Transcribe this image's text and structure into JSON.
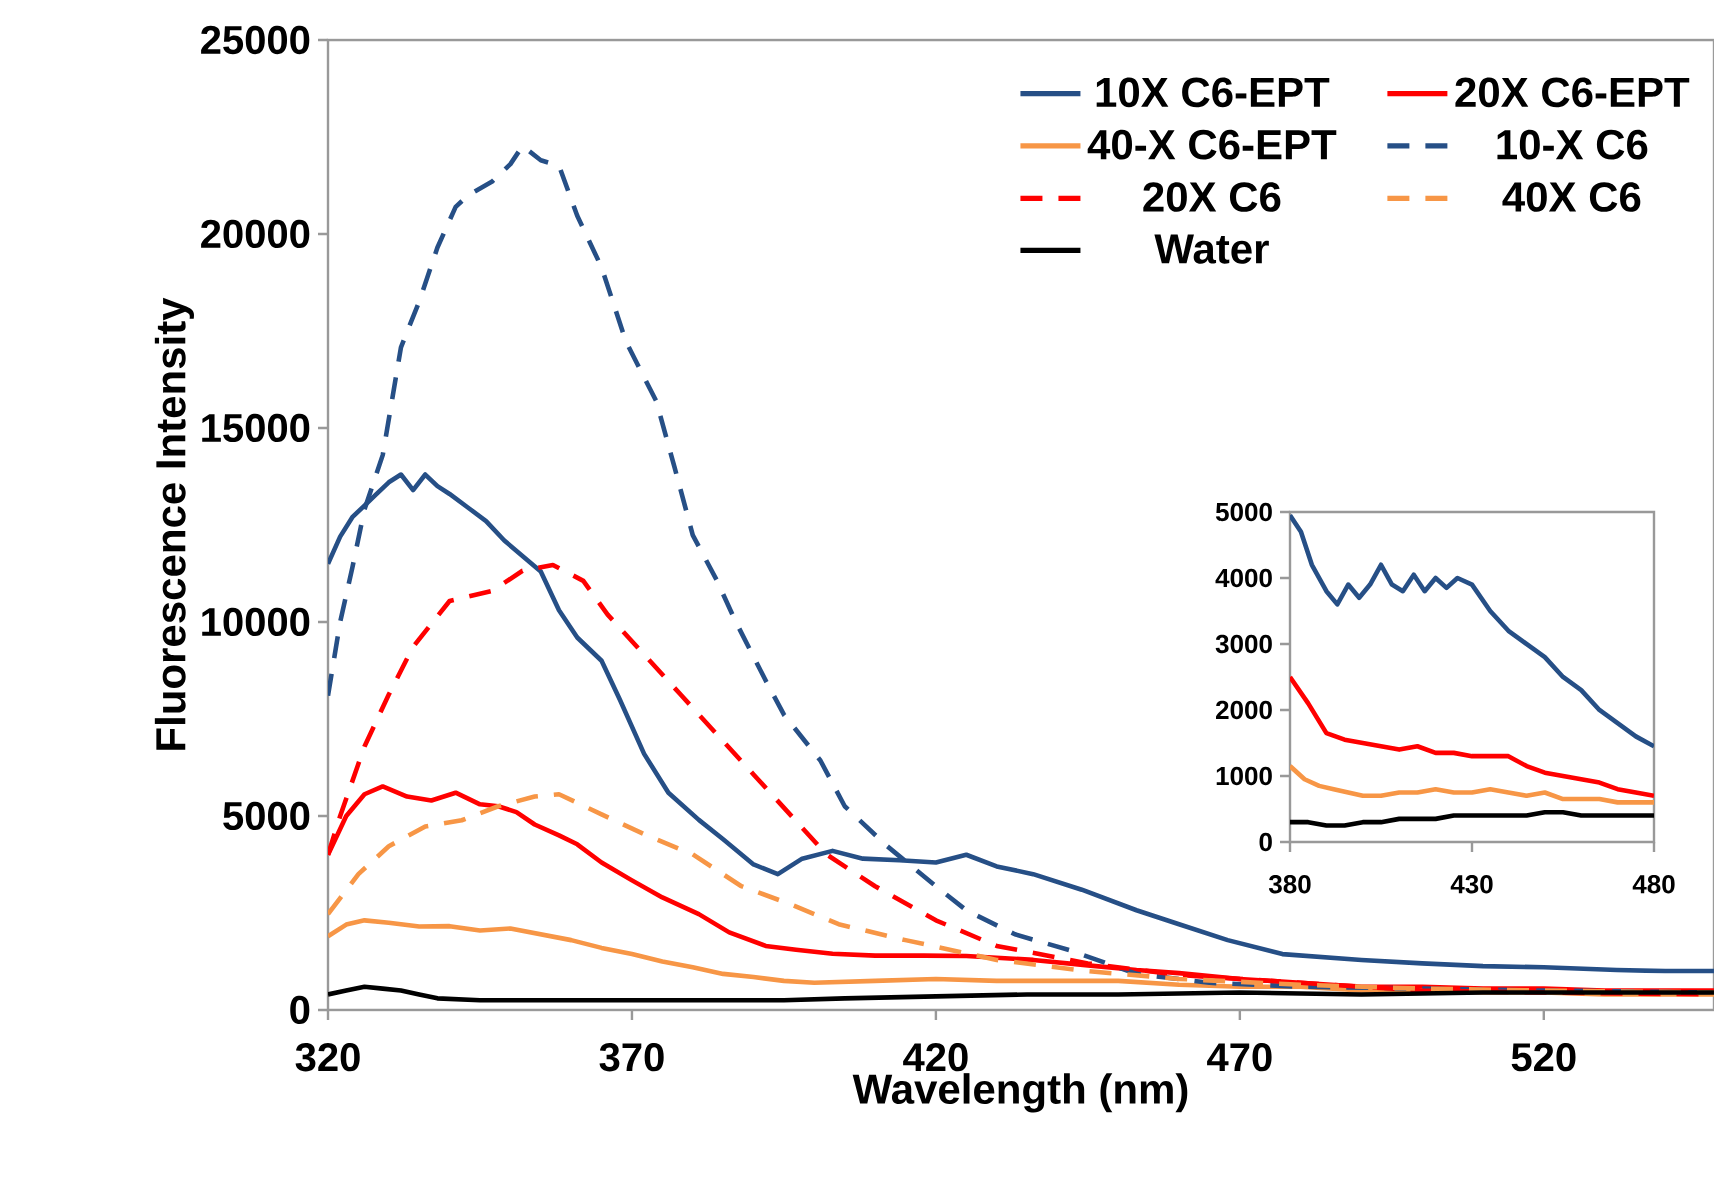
{
  "chart_data": [
    {
      "type": "line",
      "xlabel": "Wavelength (nm)",
      "ylabel": "Fluorescence Intensity",
      "xlim": [
        320,
        548
      ],
      "ylim": [
        0,
        25000
      ],
      "xticks": [
        320,
        370,
        420,
        470,
        520
      ],
      "yticks": [
        0,
        5000,
        10000,
        15000,
        20000,
        25000
      ],
      "grid": false,
      "legend": "top right",
      "marker": "none",
      "series": [
        {
          "name": "10X C6-EPT",
          "color": "#264f86",
          "line_style": "solid",
          "x": [
            320,
            322,
            324,
            326,
            328,
            330,
            332,
            334,
            336,
            338,
            340,
            343,
            346,
            349,
            352,
            355,
            358,
            361,
            365,
            368,
            372,
            376,
            381,
            385,
            390,
            394,
            398,
            403,
            408,
            414,
            420,
            425,
            430,
            436,
            444,
            453,
            460,
            468,
            477,
            490,
            500,
            510,
            520,
            532,
            540,
            548
          ],
          "values": [
            11500,
            12200,
            12700,
            13000,
            13300,
            13600,
            13800,
            13400,
            13800,
            13500,
            13300,
            12950,
            12600,
            12100,
            11700,
            11300,
            10300,
            9600,
            9000,
            8000,
            6600,
            5600,
            4900,
            4400,
            3750,
            3500,
            3900,
            4100,
            3900,
            3860,
            3800,
            4000,
            3700,
            3500,
            3100,
            2570,
            2210,
            1800,
            1440,
            1290,
            1200,
            1130,
            1100,
            1030,
            1000,
            1000
          ]
        },
        {
          "name": "20X C6-EPT",
          "color": "#ff0000",
          "line_style": "solid",
          "x": [
            320,
            323,
            326,
            329,
            333,
            337,
            341,
            345,
            348,
            351,
            354,
            358,
            361,
            365,
            370,
            375,
            381,
            386,
            392,
            397,
            403,
            410,
            418,
            425,
            436,
            445,
            453,
            460,
            470,
            480,
            490,
            500,
            510,
            520,
            530,
            540,
            548
          ],
          "values": [
            4000,
            5000,
            5560,
            5760,
            5500,
            5400,
            5600,
            5300,
            5250,
            5100,
            4780,
            4500,
            4270,
            3800,
            3340,
            2900,
            2470,
            2000,
            1650,
            1550,
            1450,
            1400,
            1400,
            1390,
            1290,
            1150,
            1030,
            950,
            800,
            700,
            600,
            600,
            550,
            550,
            500,
            500,
            500
          ]
        },
        {
          "name": "40-X C6-EPT",
          "color": "#f79646",
          "line_style": "solid",
          "x": [
            320,
            323,
            326,
            330,
            335,
            340,
            345,
            350,
            355,
            360,
            365,
            370,
            375,
            380,
            385,
            390,
            395,
            400,
            410,
            420,
            430,
            440,
            450,
            460,
            470,
            480,
            490,
            500,
            510,
            520,
            530,
            540,
            548
          ],
          "values": [
            1900,
            2200,
            2310,
            2250,
            2150,
            2160,
            2050,
            2100,
            1950,
            1800,
            1600,
            1440,
            1250,
            1100,
            930,
            850,
            750,
            700,
            750,
            800,
            750,
            750,
            750,
            650,
            600,
            600,
            500,
            500,
            450,
            450,
            400,
            400,
            400
          ]
        },
        {
          "name": "10-X C6",
          "color": "#264f86",
          "line_style": "dashed",
          "x": [
            320,
            322,
            324,
            326,
            329,
            332,
            335,
            338,
            341,
            343,
            347,
            350,
            352,
            355,
            358,
            361,
            365,
            369,
            374,
            377,
            380,
            384,
            387,
            392,
            395,
            401,
            405,
            412,
            420,
            425,
            433,
            442,
            453,
            465,
            480,
            500,
            520,
            548
          ],
          "values": [
            8100,
            10000,
            11400,
            12900,
            14300,
            17080,
            18260,
            19650,
            20700,
            20990,
            21350,
            21800,
            22270,
            21900,
            21760,
            20470,
            19140,
            17230,
            15690,
            13990,
            12240,
            11060,
            10030,
            8490,
            7610,
            6430,
            5250,
            4220,
            3190,
            2570,
            1950,
            1540,
            930,
            700,
            600,
            550,
            500,
            450
          ]
        },
        {
          "name": "20X C6",
          "color": "#ff0000",
          "line_style": "dashed",
          "x": [
            320,
            322,
            326,
            330,
            334,
            340,
            347,
            352,
            357,
            362,
            366,
            372,
            378,
            384,
            390,
            396,
            402,
            410,
            420,
            430,
            445,
            460,
            480,
            500,
            520,
            548
          ],
          "values": [
            4000,
            5000,
            6790,
            8130,
            9360,
            10540,
            10800,
            11320,
            11470,
            11060,
            10190,
            9160,
            8130,
            7100,
            6070,
            5040,
            4010,
            3190,
            2310,
            1650,
            1200,
            900,
            700,
            500,
            450,
            400
          ]
        },
        {
          "name": "40X C6",
          "color": "#f79646",
          "line_style": "dashed",
          "x": [
            320,
            325,
            330,
            336,
            342,
            348,
            354,
            358,
            365,
            372,
            380,
            388,
            396,
            404,
            415,
            430,
            445,
            460,
            480,
            500,
            520,
            548
          ],
          "values": [
            2470,
            3500,
            4220,
            4730,
            4890,
            5250,
            5500,
            5560,
            5040,
            4530,
            4010,
            3190,
            2730,
            2210,
            1800,
            1290,
            1000,
            800,
            650,
            550,
            500,
            450
          ]
        },
        {
          "name": "Water",
          "color": "#000000",
          "line_style": "solid",
          "x": [
            320,
            323,
            326,
            329,
            332,
            335,
            338,
            345,
            355,
            365,
            375,
            385,
            395,
            405,
            420,
            435,
            450,
            470,
            490,
            510,
            530,
            548
          ],
          "values": [
            400,
            500,
            600,
            550,
            500,
            400,
            300,
            250,
            250,
            250,
            250,
            250,
            250,
            300,
            350,
            400,
            400,
            450,
            400,
            450,
            450,
            450
          ]
        }
      ]
    },
    {
      "type": "line",
      "xlim": [
        380,
        480
      ],
      "ylim": [
        0,
        5000
      ],
      "xticks": [
        380,
        430,
        480
      ],
      "yticks": [
        0,
        1000,
        2000,
        3000,
        4000,
        5000
      ],
      "grid": false,
      "legend": false,
      "marker": "none",
      "series": [
        {
          "color": "#264f86",
          "line_style": "solid",
          "x": [
            380,
            383,
            386,
            390,
            393,
            396,
            399,
            402,
            405,
            408,
            411,
            414,
            417,
            420,
            423,
            426,
            430,
            435,
            440,
            445,
            450,
            455,
            460,
            465,
            470,
            475,
            480
          ],
          "values": [
            4950,
            4700,
            4200,
            3800,
            3600,
            3900,
            3700,
            3900,
            4200,
            3900,
            3800,
            4050,
            3800,
            4000,
            3850,
            4000,
            3900,
            3500,
            3200,
            3000,
            2800,
            2500,
            2300,
            2000,
            1800,
            1600,
            1450
          ]
        },
        {
          "color": "#ff0000",
          "line_style": "solid",
          "x": [
            380,
            385,
            390,
            395,
            400,
            405,
            410,
            415,
            420,
            425,
            430,
            435,
            440,
            445,
            450,
            455,
            460,
            465,
            470,
            475,
            480
          ],
          "values": [
            2500,
            2100,
            1650,
            1550,
            1500,
            1450,
            1400,
            1450,
            1350,
            1350,
            1300,
            1300,
            1300,
            1150,
            1050,
            1000,
            950,
            900,
            800,
            750,
            700
          ]
        },
        {
          "color": "#f79646",
          "line_style": "solid",
          "x": [
            380,
            384,
            388,
            392,
            396,
            400,
            405,
            410,
            415,
            420,
            425,
            430,
            435,
            440,
            445,
            450,
            455,
            460,
            465,
            470,
            475,
            480
          ],
          "values": [
            1150,
            950,
            850,
            800,
            750,
            700,
            700,
            750,
            750,
            800,
            750,
            750,
            800,
            750,
            700,
            750,
            650,
            650,
            650,
            600,
            600,
            600
          ]
        },
        {
          "color": "#000000",
          "line_style": "solid",
          "x": [
            380,
            385,
            390,
            395,
            400,
            405,
            410,
            415,
            420,
            425,
            430,
            435,
            440,
            445,
            450,
            455,
            460,
            465,
            470,
            475,
            480
          ],
          "values": [
            300,
            300,
            250,
            250,
            300,
            300,
            350,
            350,
            350,
            400,
            400,
            400,
            400,
            400,
            450,
            450,
            400,
            400,
            400,
            400,
            400
          ]
        }
      ]
    }
  ]
}
